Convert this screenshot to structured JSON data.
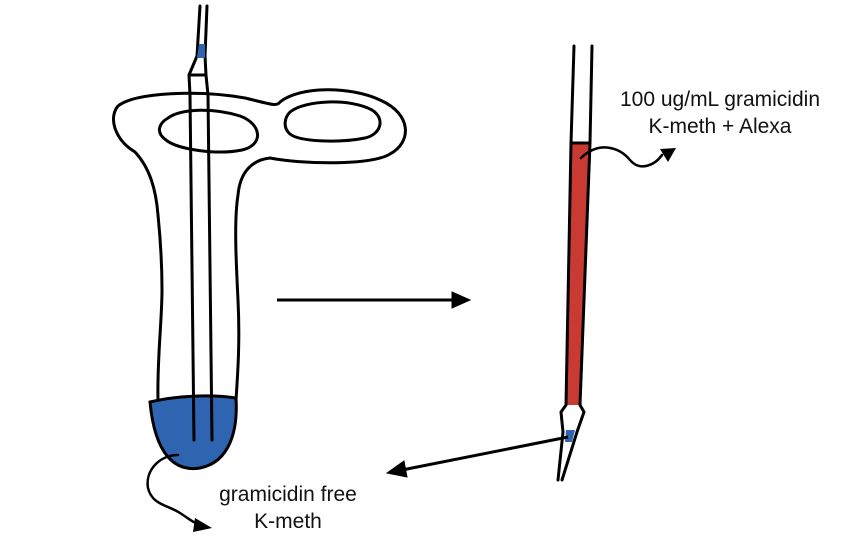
{
  "labels": {
    "pipette_solution_line1": "100 ug/mL gramicidin",
    "pipette_solution_line2": "K-meth + Alexa",
    "tip_solution_line1": "gramicidin free",
    "tip_solution_line2": "K-meth"
  },
  "colors": {
    "tip_fill_solution": "#2f64b0",
    "backfill_solution": "#c93a32",
    "stroke": "#000000"
  }
}
